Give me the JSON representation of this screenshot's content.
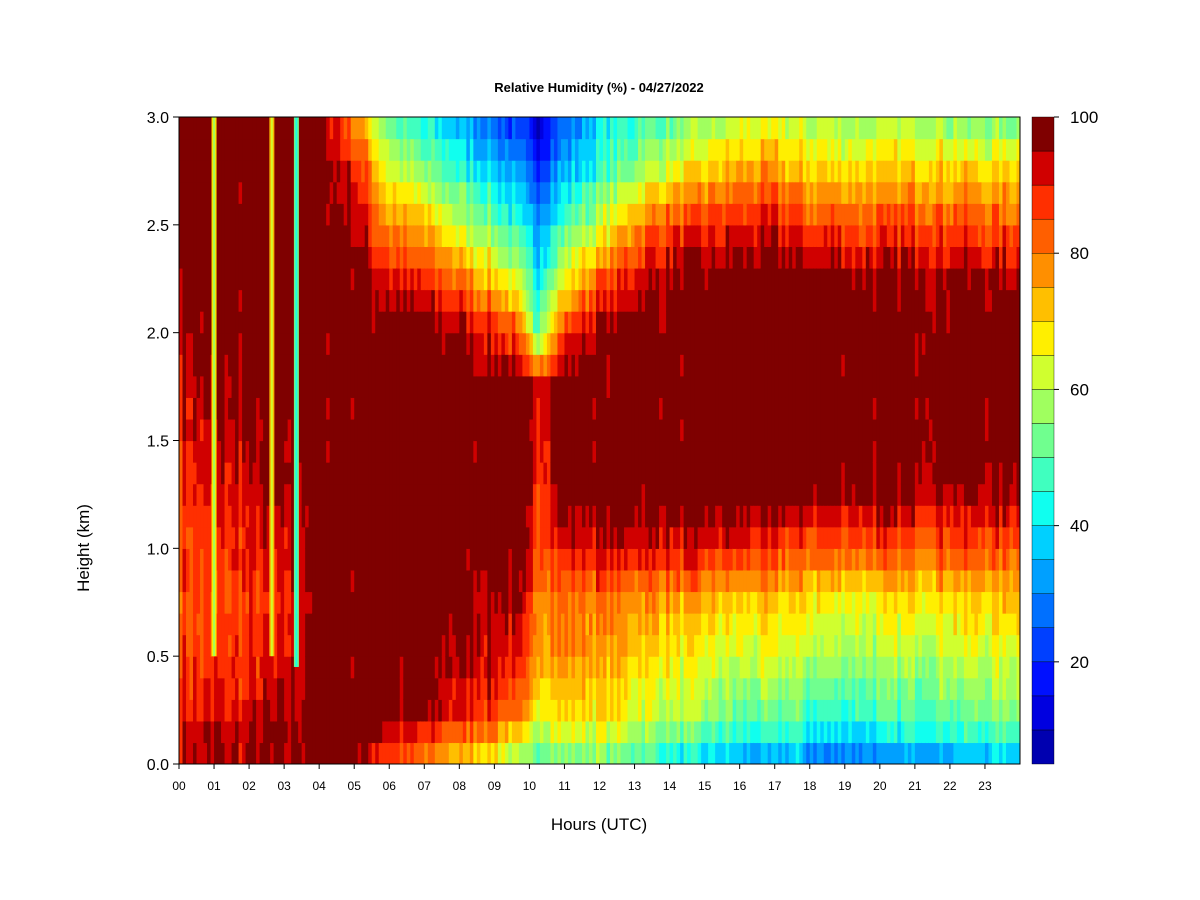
{
  "chart_data": {
    "type": "heatmap",
    "title": "Relative Humidity (%) - 04/27/2022",
    "xlabel": "Hours (UTC)",
    "ylabel": "Height (km)",
    "xlim": [
      0,
      24
    ],
    "ylim": [
      0,
      3
    ],
    "x_ticks": [
      "00",
      "01",
      "02",
      "03",
      "04",
      "05",
      "06",
      "07",
      "08",
      "09",
      "10",
      "11",
      "12",
      "13",
      "14",
      "15",
      "16",
      "17",
      "18",
      "19",
      "20",
      "21",
      "22",
      "23"
    ],
    "y_ticks": [
      "0.0",
      "0.5",
      "1.0",
      "1.5",
      "2.0",
      "2.5",
      "3.0"
    ],
    "colorbar": {
      "range": [
        5,
        100
      ],
      "ticks": [
        "20",
        "40",
        "60",
        "80",
        "100"
      ],
      "levels": [
        5,
        10,
        15,
        20,
        25,
        30,
        35,
        40,
        45,
        50,
        55,
        60,
        65,
        70,
        75,
        80,
        85,
        90,
        95,
        100
      ],
      "colors": [
        "#00007f",
        "#0000b0",
        "#0000e0",
        "#0010ff",
        "#0040ff",
        "#0070ff",
        "#00a0ff",
        "#00d0ff",
        "#10ffef",
        "#40ffbf",
        "#70ff8f",
        "#a0ff5f",
        "#d0ff2f",
        "#ffef00",
        "#ffbf00",
        "#ff8f00",
        "#ff5f00",
        "#ff2f00",
        "#d00000",
        "#7f0000"
      ]
    },
    "profile_heights_km": [
      0.0,
      0.1,
      0.25,
      0.5,
      0.75,
      1.0,
      1.25,
      1.5,
      1.75,
      2.0,
      2.25,
      2.5,
      2.75,
      3.0
    ],
    "profiles": [
      {
        "hour": 0.0,
        "rh": [
          92,
          95,
          90,
          88,
          85,
          86,
          88,
          90,
          92,
          95,
          98,
          100,
          100,
          100
        ]
      },
      {
        "hour": 0.5,
        "rh": [
          93,
          94,
          90,
          86,
          84,
          86,
          88,
          92,
          95,
          97,
          100,
          100,
          100,
          100
        ]
      },
      {
        "hour": 1.0,
        "rh": [
          92,
          94,
          90,
          86,
          84,
          86,
          90,
          92,
          95,
          98,
          100,
          100,
          100,
          100
        ]
      },
      {
        "hour": 2.0,
        "rh": [
          94,
          96,
          92,
          88,
          86,
          90,
          92,
          95,
          98,
          100,
          100,
          100,
          100,
          100
        ]
      },
      {
        "hour": 3.0,
        "rh": [
          95,
          97,
          94,
          90,
          88,
          90,
          94,
          96,
          100,
          100,
          100,
          100,
          100,
          100
        ]
      },
      {
        "hour": 4.0,
        "rh": [
          98,
          100,
          100,
          100,
          100,
          100,
          100,
          100,
          100,
          100,
          100,
          100,
          100,
          100
        ]
      },
      {
        "hour": 5.0,
        "rh": [
          95,
          100,
          100,
          100,
          100,
          100,
          100,
          100,
          100,
          100,
          100,
          96,
          90,
          78
        ]
      },
      {
        "hour": 6.0,
        "rh": [
          85,
          92,
          98,
          100,
          100,
          100,
          100,
          100,
          100,
          100,
          92,
          78,
          65,
          50
        ]
      },
      {
        "hour": 7.0,
        "rh": [
          75,
          85,
          95,
          98,
          100,
          100,
          100,
          100,
          100,
          100,
          88,
          72,
          55,
          40
        ]
      },
      {
        "hour": 8.0,
        "rh": [
          68,
          80,
          90,
          95,
          98,
          100,
          100,
          100,
          100,
          95,
          82,
          62,
          45,
          35
        ]
      },
      {
        "hour": 9.0,
        "rh": [
          64,
          78,
          88,
          94,
          96,
          100,
          100,
          100,
          100,
          90,
          72,
          52,
          38,
          25
        ]
      },
      {
        "hour": 9.6,
        "rh": [
          55,
          65,
          80,
          90,
          95,
          100,
          100,
          100,
          100,
          85,
          62,
          45,
          32,
          20
        ]
      },
      {
        "hour": 10.2,
        "rh": [
          50,
          58,
          68,
          78,
          82,
          86,
          90,
          92,
          95,
          52,
          42,
          32,
          22,
          12
        ]
      },
      {
        "hour": 11.0,
        "rh": [
          52,
          60,
          70,
          78,
          80,
          90,
          98,
          100,
          100,
          88,
          65,
          48,
          35,
          25
        ]
      },
      {
        "hour": 12.0,
        "rh": [
          52,
          60,
          70,
          76,
          80,
          92,
          100,
          100,
          100,
          98,
          82,
          62,
          45,
          38
        ]
      },
      {
        "hour": 13.0,
        "rh": [
          48,
          56,
          64,
          72,
          78,
          92,
          100,
          100,
          100,
          100,
          92,
          78,
          58,
          45
        ]
      },
      {
        "hour": 14.0,
        "rh": [
          40,
          50,
          60,
          68,
          76,
          92,
          100,
          100,
          100,
          100,
          96,
          85,
          65,
          50
        ]
      },
      {
        "hour": 15.0,
        "rh": [
          35,
          45,
          56,
          64,
          72,
          90,
          100,
          100,
          100,
          100,
          98,
          88,
          70,
          55
        ]
      },
      {
        "hour": 16.0,
        "rh": [
          30,
          42,
          52,
          62,
          70,
          88,
          100,
          100,
          100,
          100,
          100,
          90,
          75,
          60
        ]
      },
      {
        "hour": 17.0,
        "rh": [
          28,
          40,
          50,
          62,
          70,
          86,
          100,
          100,
          100,
          100,
          100,
          90,
          76,
          62
        ]
      },
      {
        "hour": 17.6,
        "rh": [
          34,
          45,
          54,
          62,
          70,
          84,
          100,
          100,
          100,
          100,
          100,
          88,
          72,
          60
        ]
      },
      {
        "hour": 18.0,
        "rh": [
          26,
          38,
          48,
          60,
          68,
          84,
          98,
          100,
          100,
          100,
          98,
          86,
          72,
          58
        ]
      },
      {
        "hour": 19.0,
        "rh": [
          24,
          36,
          46,
          58,
          66,
          84,
          98,
          100,
          100,
          100,
          98,
          85,
          70,
          56
        ]
      },
      {
        "hour": 20.0,
        "rh": [
          26,
          38,
          48,
          58,
          66,
          84,
          98,
          100,
          100,
          100,
          98,
          85,
          70,
          58
        ]
      },
      {
        "hour": 21.0,
        "rh": [
          28,
          40,
          50,
          60,
          68,
          84,
          96,
          100,
          100,
          100,
          98,
          86,
          72,
          58
        ]
      },
      {
        "hour": 22.0,
        "rh": [
          30,
          42,
          52,
          62,
          70,
          86,
          96,
          100,
          100,
          100,
          98,
          86,
          72,
          56
        ]
      },
      {
        "hour": 23.0,
        "rh": [
          32,
          44,
          54,
          62,
          70,
          84,
          96,
          100,
          100,
          100,
          96,
          84,
          70,
          52
        ]
      },
      {
        "hour": 24.0,
        "rh": [
          34,
          46,
          56,
          64,
          72,
          84,
          96,
          100,
          100,
          100,
          96,
          84,
          70,
          52
        ]
      }
    ],
    "streaks": [
      {
        "hour": 1.0,
        "rh": 68,
        "bottom_km": 0.5
      },
      {
        "hour": 2.65,
        "rh": 72,
        "bottom_km": 0.5
      },
      {
        "hour": 3.35,
        "rh": 55,
        "bottom_km": 0.45
      }
    ]
  }
}
